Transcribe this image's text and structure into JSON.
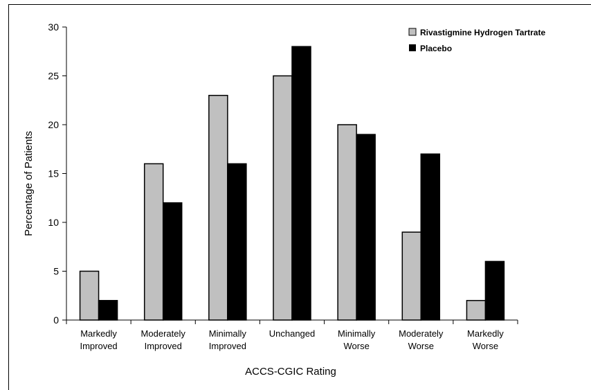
{
  "chart_data": {
    "type": "bar",
    "title": "",
    "xlabel": "ACCS-CGIC Rating",
    "ylabel": "Percentage of Patients",
    "ylim": [
      0,
      30
    ],
    "yticks": [
      0,
      5,
      10,
      15,
      20,
      25,
      30
    ],
    "grid": false,
    "legend_position": "top-right",
    "categories": [
      [
        "Markedly",
        "Improved"
      ],
      [
        "Moderately",
        "Improved"
      ],
      [
        "Minimally",
        "Improved"
      ],
      [
        "Unchanged"
      ],
      [
        "Minimally",
        "Worse"
      ],
      [
        "Moderately",
        "Worse"
      ],
      [
        "Markedly",
        "Worse"
      ]
    ],
    "series": [
      {
        "name": "Rivastigmine Hydrogen Tartrate",
        "color": "#c0c0c0",
        "values": [
          5,
          16,
          23,
          25,
          20,
          9,
          2
        ]
      },
      {
        "name": "Placebo",
        "color": "#000000",
        "values": [
          2,
          12,
          16,
          28,
          19,
          17,
          6
        ]
      }
    ]
  }
}
